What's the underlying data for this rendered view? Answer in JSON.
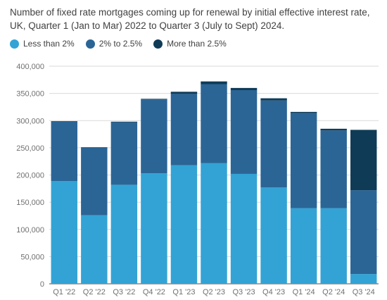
{
  "title": "Number of fixed rate mortgages coming up for renewal by initial effective interest rate, UK, Quarter 1 (Jan to Mar) 2022 to Quarter 3 (July to Sept) 2024.",
  "colors": {
    "less_than_2": "#33a3d5",
    "2_to_2_5": "#2b6596",
    "more_than_2_5": "#0f3b57",
    "grid": "#d9d9d9",
    "axis": "#707071"
  },
  "legend": [
    {
      "label": "Less than 2%",
      "color": "#33a3d5"
    },
    {
      "label": "2% to 2.5%",
      "color": "#2b6596"
    },
    {
      "label": "More than 2.5%",
      "color": "#0f3b57"
    }
  ],
  "chart_data": {
    "type": "bar",
    "stacked": true,
    "title": "Number of fixed rate mortgages coming up for renewal by initial effective interest rate, UK, Quarter 1 (Jan to Mar) 2022 to Quarter 3 (July to Sept) 2024.",
    "categories": [
      "Q1 '22",
      "Q2 '22",
      "Q3 '22",
      "Q4 '22",
      "Q1 '23",
      "Q2 '23",
      "Q3 '23",
      "Q4 '23",
      "Q1 '24",
      "Q2 '24",
      "Q3 '24"
    ],
    "series": [
      {
        "name": "Less than 2%",
        "color": "#33a3d5",
        "values": [
          189000,
          126000,
          182000,
          203000,
          218000,
          222000,
          202000,
          177000,
          139000,
          139000,
          18000
        ]
      },
      {
        "name": "2% to 2.5%",
        "color": "#2b6596",
        "values": [
          109000,
          124000,
          115000,
          136000,
          131000,
          145000,
          154000,
          160000,
          175000,
          143000,
          154000
        ]
      },
      {
        "name": "More than 2.5%",
        "color": "#0f3b57",
        "values": [
          1000,
          1000,
          1000,
          1000,
          4000,
          5000,
          4000,
          4000,
          2000,
          3000,
          111000
        ]
      }
    ],
    "yticks": [
      "0",
      "50,000",
      "100,000",
      "150,000",
      "200,000",
      "250,000",
      "300,000",
      "350,000",
      "400,000"
    ],
    "ylim": [
      0,
      400000
    ],
    "grid": true,
    "legend_position": "top-left"
  }
}
